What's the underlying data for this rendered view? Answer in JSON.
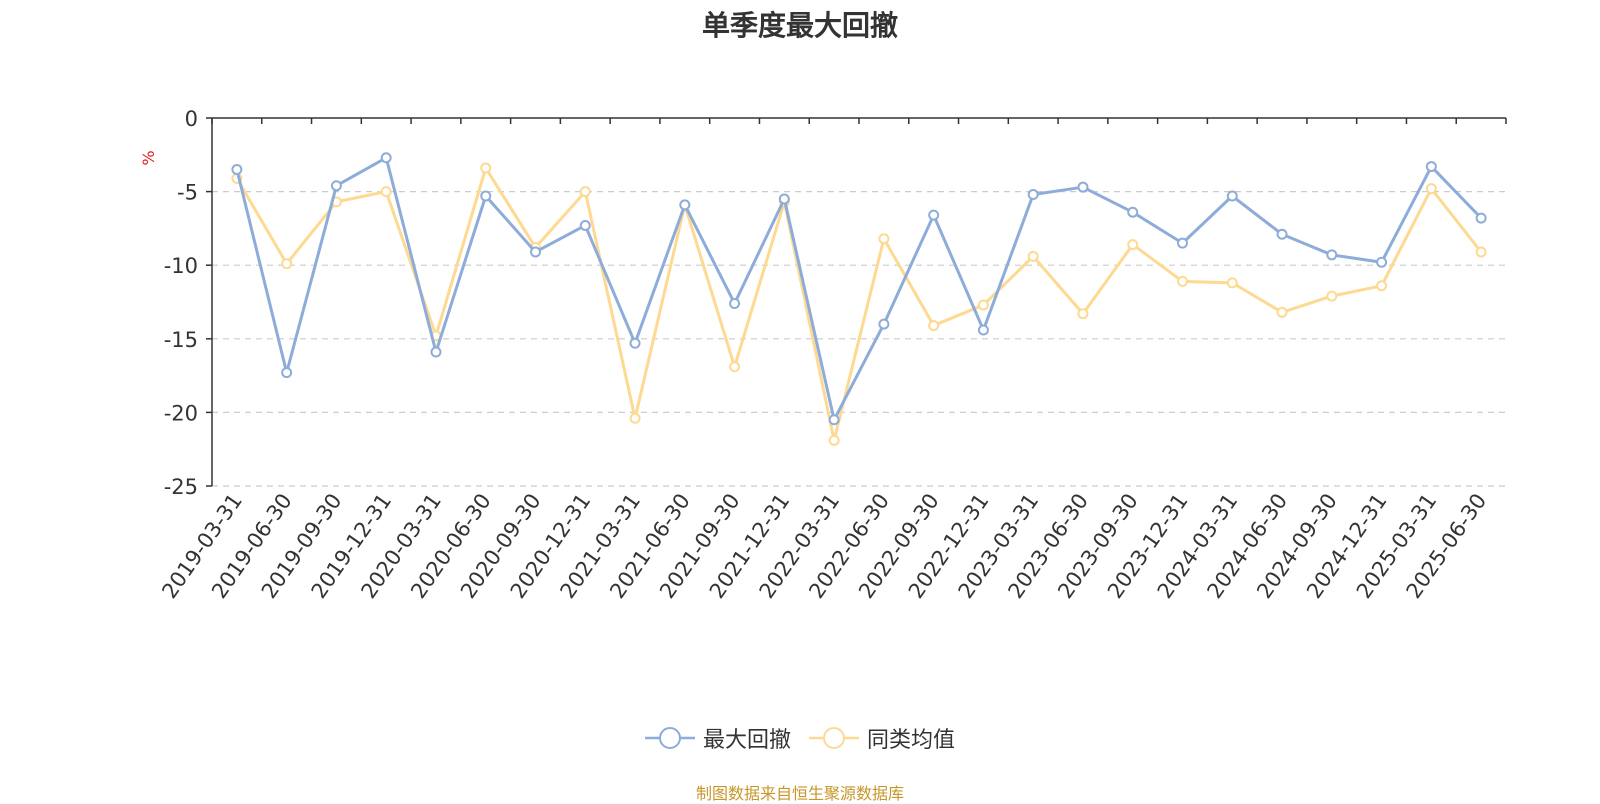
{
  "chart_data": {
    "type": "line",
    "title": "单季度最大回撤",
    "ylabel": "%",
    "ylim": [
      -25,
      0
    ],
    "yticks": [
      0,
      -5,
      -10,
      -15,
      -20,
      -25
    ],
    "grid": true,
    "legend_position": "bottom",
    "categories": [
      "2019-03-31",
      "2019-06-30",
      "2019-09-30",
      "2019-12-31",
      "2020-03-31",
      "2020-06-30",
      "2020-09-30",
      "2020-12-31",
      "2021-03-31",
      "2021-06-30",
      "2021-09-30",
      "2021-12-31",
      "2022-03-31",
      "2022-06-30",
      "2022-09-30",
      "2022-12-31",
      "2023-03-31",
      "2023-06-30",
      "2023-09-30",
      "2023-12-31",
      "2024-03-31",
      "2024-06-30",
      "2024-09-30",
      "2024-12-31",
      "2025-03-31",
      "2025-06-30"
    ],
    "series": [
      {
        "name": "最大回撤",
        "color": "#8eacd9",
        "values": [
          -3.5,
          -17.3,
          -4.6,
          -2.7,
          -15.9,
          -5.3,
          -9.1,
          -7.3,
          -15.3,
          -5.9,
          -12.6,
          -5.5,
          -20.5,
          -14.0,
          -6.6,
          -14.4,
          -5.2,
          -4.7,
          -6.4,
          -8.5,
          -5.3,
          -7.9,
          -9.3,
          -9.8,
          -3.3,
          -6.8
        ]
      },
      {
        "name": "同类均值",
        "color": "#fdd991",
        "values": [
          -4.1,
          -9.9,
          -5.7,
          -5.0,
          -14.8,
          -3.4,
          -8.8,
          -5.0,
          -20.4,
          -5.9,
          -16.9,
          -5.7,
          -21.9,
          -8.2,
          -14.1,
          -12.7,
          -9.4,
          -13.3,
          -8.6,
          -11.1,
          -11.2,
          -13.2,
          -12.1,
          -11.4,
          -4.8,
          -9.1
        ]
      }
    ]
  },
  "footer": {
    "source": "制图数据来自恒生聚源数据库"
  }
}
